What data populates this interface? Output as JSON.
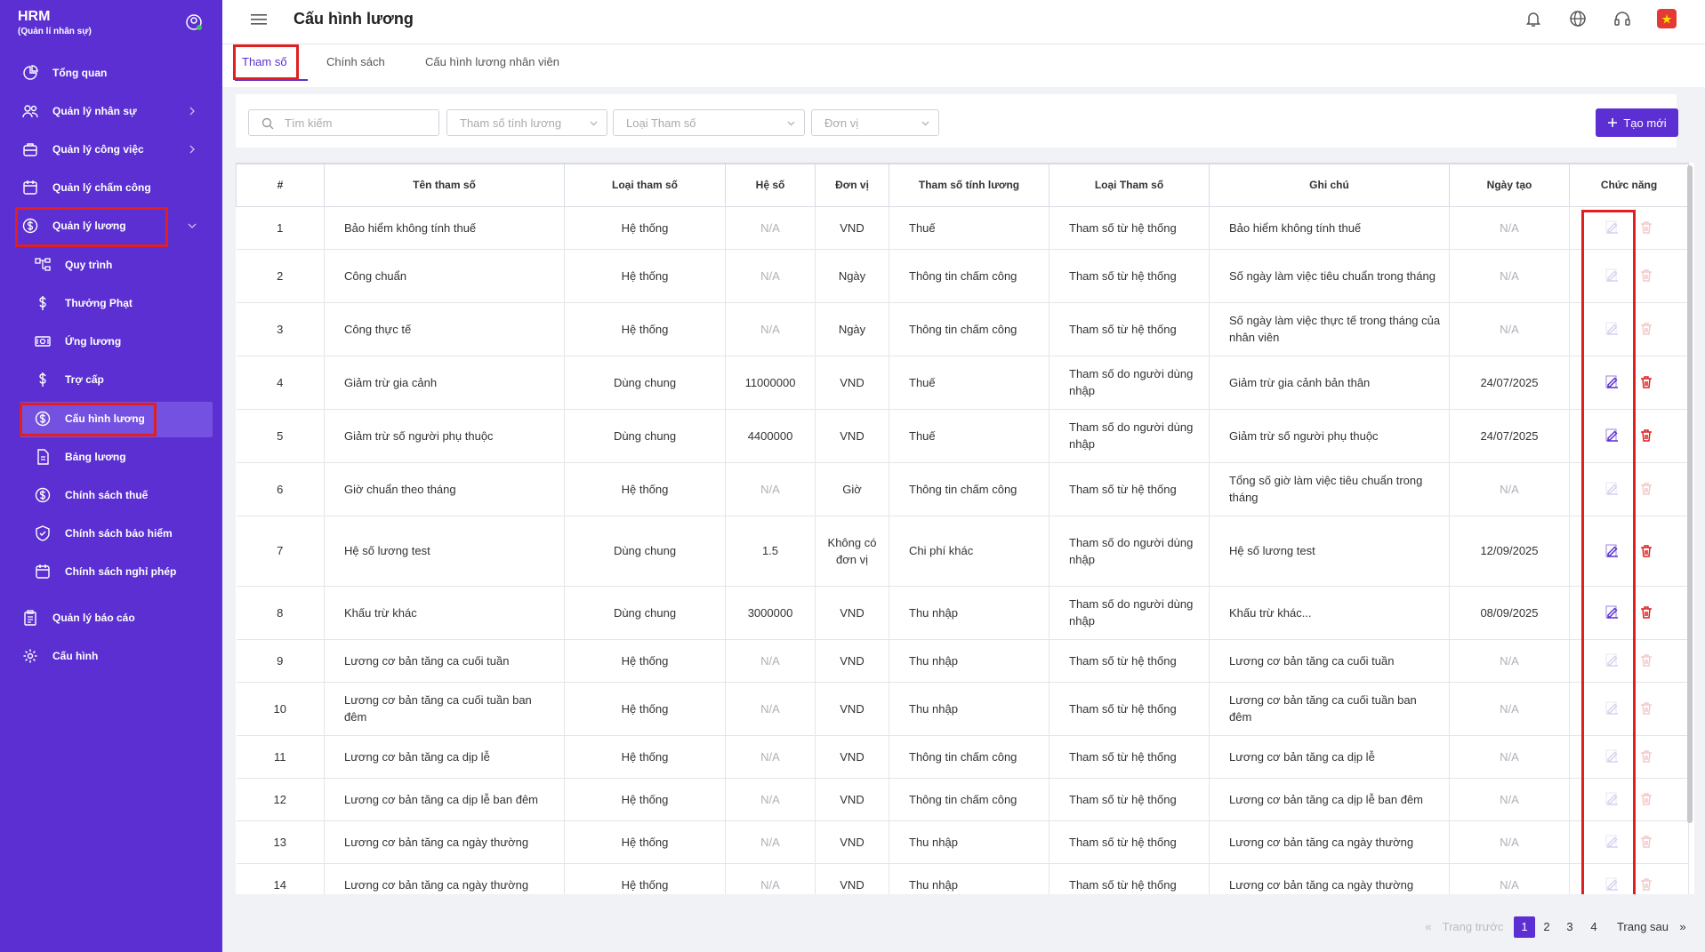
{
  "app": {
    "title": "HRM",
    "subtitle": "(Quản lí nhân sự)"
  },
  "sidebar": {
    "items": [
      {
        "label": "Tổng quan",
        "icon": "pie-chart-icon"
      },
      {
        "label": "Quản lý nhân sự",
        "icon": "users-icon"
      },
      {
        "label": "Quản lý công việc",
        "icon": "briefcase-icon"
      },
      {
        "label": "Quản lý chấm công",
        "icon": "calendar-icon"
      },
      {
        "label": "Quản lý lương",
        "icon": "dollar-circle-icon"
      },
      {
        "label": "Quy trình",
        "icon": "flow-icon"
      },
      {
        "label": "Thưởng Phạt",
        "icon": "dollar-icon"
      },
      {
        "label": "Ứng lương",
        "icon": "money-icon"
      },
      {
        "label": "Trợ cấp",
        "icon": "dollar-icon"
      },
      {
        "label": "Cấu hình lương",
        "icon": "dollar-circle-icon"
      },
      {
        "label": "Bảng lương",
        "icon": "document-icon"
      },
      {
        "label": "Chính sách thuế",
        "icon": "dollar-circle-icon"
      },
      {
        "label": "Chính sách bảo hiểm",
        "icon": "shield-icon"
      },
      {
        "label": "Chính sách nghỉ phép",
        "icon": "calendar-icon"
      },
      {
        "label": "Quản lý báo cáo",
        "icon": "clipboard-icon"
      },
      {
        "label": "Cấu hình",
        "icon": "gear-icon"
      }
    ]
  },
  "header": {
    "title": "Cấu hình lương"
  },
  "tabs": [
    {
      "label": "Tham số"
    },
    {
      "label": "Chính sách"
    },
    {
      "label": "Cấu hình lương nhân viên"
    }
  ],
  "filters": {
    "search_placeholder": "Tìm kiếm",
    "f1": "Tham số tính lương",
    "f2": "Loại Tham số",
    "f3": "Đơn vị",
    "create_label": "Tạo mới"
  },
  "table": {
    "headers": [
      "#",
      "Tên tham số",
      "Loại tham số",
      "Hệ số",
      "Đơn vị",
      "Tham số tính lương",
      "Loại Tham số",
      "Ghi chú",
      "Ngày tạo",
      "Chức năng"
    ],
    "rows": [
      [
        "1",
        "Bảo hiểm không tính thuế",
        "Hệ thống",
        "N/A",
        "VND",
        "Thuế",
        "Tham số từ hệ thống",
        "Bảo hiểm không tính thuế",
        "N/A"
      ],
      [
        "2",
        "Công chuẩn",
        "Hệ thống",
        "N/A",
        "Ngày",
        "Thông tin chấm công",
        "Tham số từ hệ thống",
        "Số ngày làm việc tiêu chuẩn trong tháng",
        "N/A"
      ],
      [
        "3",
        "Công thực tế",
        "Hệ thống",
        "N/A",
        "Ngày",
        "Thông tin chấm công",
        "Tham số từ hệ thống",
        "Số ngày làm việc thực tế trong tháng của nhân viên",
        "N/A"
      ],
      [
        "4",
        "Giảm trừ gia cảnh",
        "Dùng chung",
        "11000000",
        "VND",
        "Thuế",
        "Tham số do người dùng nhập",
        "Giảm trừ gia cảnh bản thân",
        "24/07/2025"
      ],
      [
        "5",
        "Giảm trừ số người phụ thuộc",
        "Dùng chung",
        "4400000",
        "VND",
        "Thuế",
        "Tham số do người dùng nhập",
        "Giảm trừ số người phụ thuộc",
        "24/07/2025"
      ],
      [
        "6",
        "Giờ chuẩn theo tháng",
        "Hệ thống",
        "N/A",
        "Giờ",
        "Thông tin chấm công",
        "Tham số từ hệ thống",
        "Tổng số giờ làm việc tiêu chuẩn trong tháng",
        "N/A"
      ],
      [
        "7",
        "Hệ số lương test",
        "Dùng chung",
        "1.5",
        "Không có đơn vị",
        "Chi phí khác",
        "Tham số do người dùng nhập",
        "Hệ số lương test",
        "12/09/2025"
      ],
      [
        "8",
        "Khấu trừ khác",
        "Dùng chung",
        "3000000",
        "VND",
        "Thu nhập",
        "Tham số do người dùng nhập",
        "Khấu trừ khác...",
        "08/09/2025"
      ],
      [
        "9",
        "Lương cơ bản tăng ca cuối tuần",
        "Hệ thống",
        "N/A",
        "VND",
        "Thu nhập",
        "Tham số từ hệ thống",
        "Lương cơ bản tăng ca cuối tuần",
        "N/A"
      ],
      [
        "10",
        "Lương cơ bản tăng ca cuối tuần ban đêm",
        "Hệ thống",
        "N/A",
        "VND",
        "Thu nhập",
        "Tham số từ hệ thống",
        "Lương cơ bản tăng ca cuối tuần ban đêm",
        "N/A"
      ],
      [
        "11",
        "Lương cơ bản tăng ca dịp lễ",
        "Hệ thống",
        "N/A",
        "VND",
        "Thông tin chấm công",
        "Tham số từ hệ thống",
        "Lương cơ bản tăng ca dịp lễ",
        "N/A"
      ],
      [
        "12",
        "Lương cơ bản tăng ca dịp lễ ban đêm",
        "Hệ thống",
        "N/A",
        "VND",
        "Thông tin chấm công",
        "Tham số từ hệ thống",
        "Lương cơ bản tăng ca dịp lễ ban đêm",
        "N/A"
      ],
      [
        "13",
        "Lương cơ bản tăng ca ngày thường",
        "Hệ thống",
        "N/A",
        "VND",
        "Thu nhập",
        "Tham số từ hệ thống",
        "Lương cơ bản tăng ca ngày thường",
        "N/A"
      ],
      [
        "14",
        "Lương cơ bản tăng ca ngày thường",
        "Hệ thống",
        "N/A",
        "VND",
        "Thu nhập",
        "Tham số từ hệ thống",
        "Lương cơ bản tăng ca ngày thường",
        "N/A"
      ]
    ],
    "enabled": [
      false,
      false,
      false,
      true,
      true,
      false,
      true,
      true,
      false,
      false,
      false,
      false,
      false,
      false
    ]
  },
  "pager": {
    "prev": "Trang trước",
    "next": "Trang sau",
    "pages": [
      "1",
      "2",
      "3",
      "4"
    ],
    "current": "1"
  },
  "colors": {
    "accent": "#5b2fd1",
    "danger": "#e02020"
  }
}
